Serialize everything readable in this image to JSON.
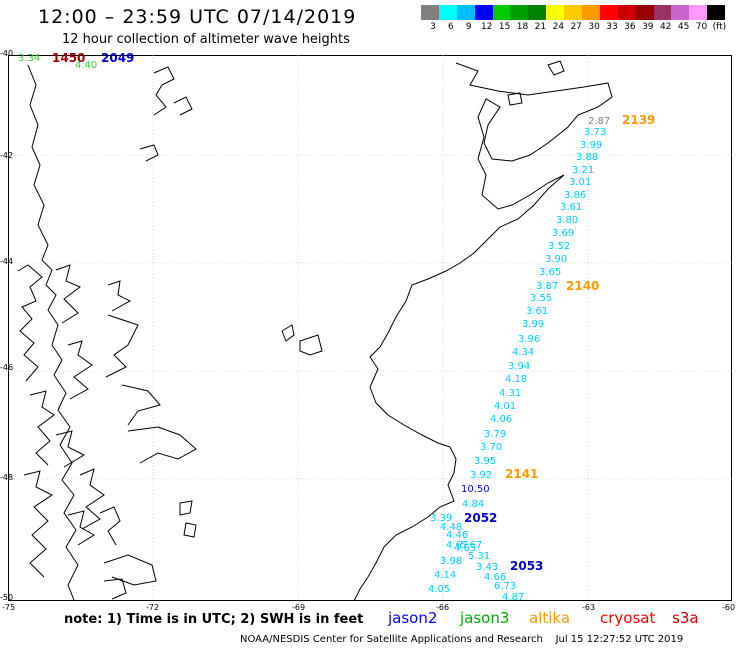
{
  "header": {
    "title": "12:00 – 23:59 UTC 07/14/2019",
    "subtitle": "12 hour collection of altimeter wave heights"
  },
  "colorbar": {
    "swatches": [
      "#808080",
      "#00ffff",
      "#00bfff",
      "#0000ff",
      "#00cc00",
      "#00a000",
      "#008000",
      "#ffff00",
      "#ffcc00",
      "#ff9900",
      "#ff0000",
      "#cc0000",
      "#990000",
      "#993366",
      "#cc66cc",
      "#ff99ff",
      "#000000"
    ],
    "labels": [
      "3",
      "6",
      "9",
      "12",
      "15",
      "18",
      "21",
      "24",
      "27",
      "30",
      "33",
      "36",
      "39",
      "42",
      "45",
      "70",
      "(ft)"
    ]
  },
  "axes": {
    "lat_labels": [
      "-40",
      "-42",
      "-44",
      "-46",
      "-48",
      "-50"
    ],
    "lon_labels": [
      "-75",
      "-72",
      "-69",
      "-66",
      "-63",
      "-60"
    ]
  },
  "measurements": [
    {
      "text": "2.87",
      "color": "#808080"
    },
    {
      "text": "3.73",
      "color": "#00ccff"
    },
    {
      "text": "3.99",
      "color": "#00ccff"
    },
    {
      "text": "3.88",
      "color": "#00ccff"
    },
    {
      "text": "3.21",
      "color": "#00ccff"
    },
    {
      "text": "3.01",
      "color": "#00ccff"
    },
    {
      "text": "3.86",
      "color": "#00ccff"
    },
    {
      "text": "3.61",
      "color": "#00ccff"
    },
    {
      "text": "3.80",
      "color": "#00ccff"
    },
    {
      "text": "3.69",
      "color": "#00ccff"
    },
    {
      "text": "3.52",
      "color": "#00ccff"
    },
    {
      "text": "3.90",
      "color": "#00ccff"
    },
    {
      "text": "3.65",
      "color": "#00ccff"
    },
    {
      "text": "3.87",
      "color": "#00ccff"
    },
    {
      "text": "3.55",
      "color": "#00ccff"
    },
    {
      "text": "3.61",
      "color": "#00ccff"
    },
    {
      "text": "3.99",
      "color": "#00ccff"
    },
    {
      "text": "3.96",
      "color": "#00ccff"
    },
    {
      "text": "4.34",
      "color": "#00ccff"
    },
    {
      "text": "3.94",
      "color": "#00ccff"
    },
    {
      "text": "4.18",
      "color": "#00ccff"
    },
    {
      "text": "4.31",
      "color": "#00ccff"
    },
    {
      "text": "4.01",
      "color": "#00ccff"
    },
    {
      "text": "4.06",
      "color": "#00ccff"
    },
    {
      "text": "3.79",
      "color": "#00ccff"
    },
    {
      "text": "3.70",
      "color": "#00ccff"
    },
    {
      "text": "3.95",
      "color": "#00ccff"
    },
    {
      "text": "3.92",
      "color": "#00ccff"
    },
    {
      "text": "10.50",
      "color": "#0000ff"
    },
    {
      "text": "4.84",
      "color": "#00ccff"
    },
    {
      "text": "3.39",
      "color": "#00ccff"
    },
    {
      "text": "4.48",
      "color": "#00ccff"
    },
    {
      "text": "4.46",
      "color": "#00ccff"
    },
    {
      "text": "4.67",
      "color": "#00ccff"
    },
    {
      "text": "4.63",
      "color": "#00ccff"
    },
    {
      "text": "5.67",
      "color": "#00ccff"
    },
    {
      "text": "3.98",
      "color": "#00ccff"
    },
    {
      "text": "5.31",
      "color": "#00ccff"
    },
    {
      "text": "3.43",
      "color": "#00ccff"
    },
    {
      "text": "4.14",
      "color": "#00ccff"
    },
    {
      "text": "4.66",
      "color": "#00ccff"
    },
    {
      "text": "6.73",
      "color": "#00ccff"
    },
    {
      "text": "4.05",
      "color": "#00ccff"
    },
    {
      "text": "4.87",
      "color": "#00ccff"
    },
    {
      "text": "3.34",
      "color": "#33cc33"
    },
    {
      "text": "4.40",
      "color": "#33cc33"
    }
  ],
  "pass_labels": [
    {
      "text": "2139",
      "color": "#ff9900"
    },
    {
      "text": "2140",
      "color": "#ff9900"
    },
    {
      "text": "2141",
      "color": "#ff9900"
    },
    {
      "text": "2052",
      "color": "#0000cc"
    },
    {
      "text": "2053",
      "color": "#0000cc"
    },
    {
      "text": "1450",
      "color": "#990000"
    },
    {
      "text": "2049",
      "color": "#0000cc"
    }
  ],
  "legend": {
    "note": "note: 1) Time is in UTC; 2) SWH is in feet",
    "satellites": [
      {
        "name": "jason2",
        "color": "#0000ff"
      },
      {
        "name": "jason3",
        "color": "#00aa00"
      },
      {
        "name": "altika",
        "color": "#ff9900"
      },
      {
        "name": "cryosat",
        "color": "#ff0000"
      },
      {
        "name": "s3a",
        "color": "#cc0000"
      }
    ]
  },
  "footer": {
    "text": "NOAA/NESDIS Center for Satellite Applications and Research    Jul 15 12:27:52 UTC 2019"
  }
}
